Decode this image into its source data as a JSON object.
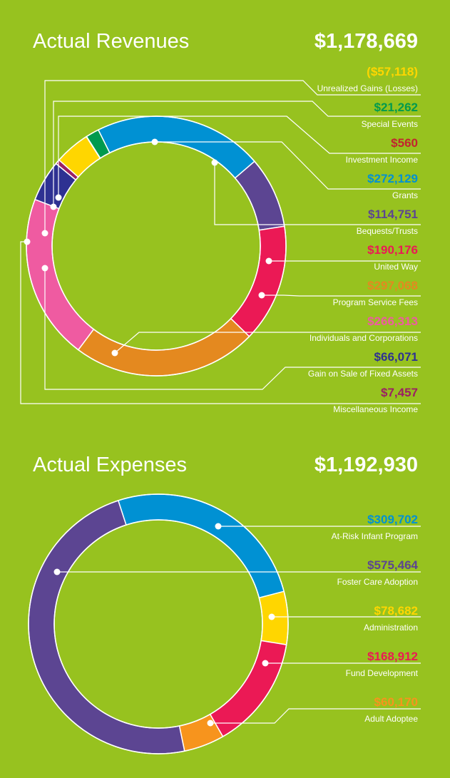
{
  "chart_data": [
    {
      "type": "pie",
      "title": "Actual Revenues",
      "total": "$1,178,669",
      "categories": [
        "Unrealized Gains (Losses)",
        "Special Events",
        "Investment Income",
        "Grants",
        "Bequests/Trusts",
        "United Way",
        "Program Service Fees",
        "Individuals and Corporations",
        "Gain on Sale of Fixed Assets",
        "Miscellaneous Income"
      ],
      "values": [
        -57118,
        21262,
        560,
        272129,
        114751,
        190176,
        297068,
        266313,
        66071,
        7457
      ],
      "value_labels": [
        "($57,118)",
        "$21,262",
        "$560",
        "$272,129",
        "$114,751",
        "$190,176",
        "$297,068",
        "$266,313",
        "$66,071",
        "$7,457"
      ],
      "colors": [
        "#ffd600",
        "#009a4e",
        "#c2242f",
        "#0091d3",
        "#5c4592",
        "#eb1955",
        "#e4891f",
        "#ef5ba1",
        "#2e3192",
        "#9b2063"
      ],
      "legend_position": "right"
    },
    {
      "type": "pie",
      "title": "Actual Expenses",
      "total": "$1,192,930",
      "categories": [
        "At-Risk Infant Program",
        "Foster Care Adoption",
        "Administration",
        "Fund Development",
        "Adult Adoptee"
      ],
      "values": [
        309702,
        575464,
        78682,
        168912,
        60170
      ],
      "value_labels": [
        "$309,702",
        "$575,464",
        "$78,682",
        "$168,912",
        "$60,170"
      ],
      "colors": [
        "#0091d3",
        "#5c4592",
        "#ffd600",
        "#eb1955",
        "#f7941d"
      ],
      "legend_position": "right"
    }
  ]
}
